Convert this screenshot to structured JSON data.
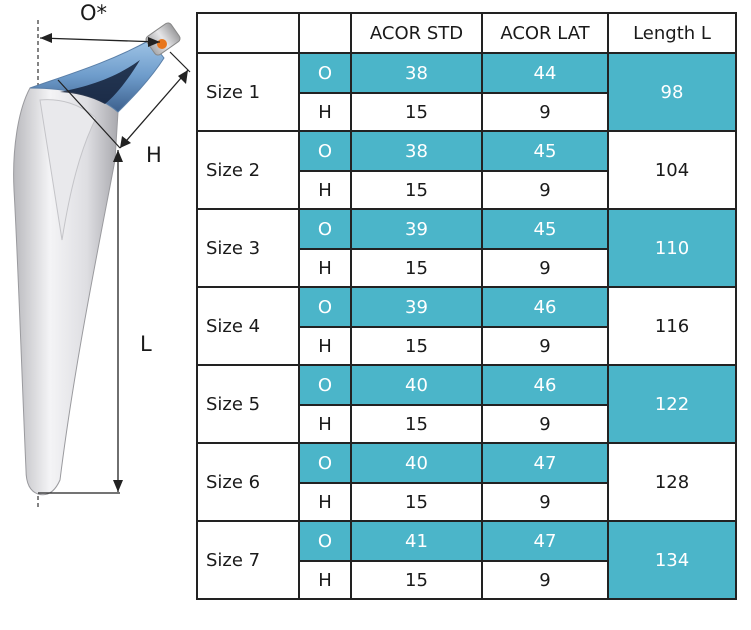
{
  "figure": {
    "labels": {
      "offset": "O*",
      "height": "H",
      "length": "L"
    },
    "colors": {
      "stem": "#e4e4e6",
      "neck": "#6fa0cf",
      "cap": "#c9c9c9",
      "pin": "#e8761c"
    }
  },
  "table": {
    "headers": [
      "",
      "",
      "ACOR STD",
      "ACOR LAT",
      "Length L"
    ],
    "rows": [
      {
        "size": "Size 1",
        "o_label": "O",
        "o_std": "38",
        "o_lat": "44",
        "h_label": "H",
        "h_std": "15",
        "h_lat": "9",
        "length": "98",
        "length_highlight": true
      },
      {
        "size": "Size 2",
        "o_label": "O",
        "o_std": "38",
        "o_lat": "45",
        "h_label": "H",
        "h_std": "15",
        "h_lat": "9",
        "length": "104",
        "length_highlight": false
      },
      {
        "size": "Size 3",
        "o_label": "O",
        "o_std": "39",
        "o_lat": "45",
        "h_label": "H",
        "h_std": "15",
        "h_lat": "9",
        "length": "110",
        "length_highlight": true
      },
      {
        "size": "Size 4",
        "o_label": "O",
        "o_std": "39",
        "o_lat": "46",
        "h_label": "H",
        "h_std": "15",
        "h_lat": "9",
        "length": "116",
        "length_highlight": false
      },
      {
        "size": "Size 5",
        "o_label": "O",
        "o_std": "40",
        "o_lat": "46",
        "h_label": "H",
        "h_std": "15",
        "h_lat": "9",
        "length": "122",
        "length_highlight": true
      },
      {
        "size": "Size 6",
        "o_label": "O",
        "o_std": "40",
        "o_lat": "47",
        "h_label": "H",
        "h_std": "15",
        "h_lat": "9",
        "length": "128",
        "length_highlight": false
      },
      {
        "size": "Size 7",
        "o_label": "O",
        "o_std": "41",
        "o_lat": "47",
        "h_label": "H",
        "h_std": "15",
        "h_lat": "9",
        "length": "134",
        "length_highlight": true
      }
    ],
    "colors": {
      "highlight": "#4bb5c9",
      "highlight_text": "#ffffff",
      "border": "#222222"
    }
  }
}
